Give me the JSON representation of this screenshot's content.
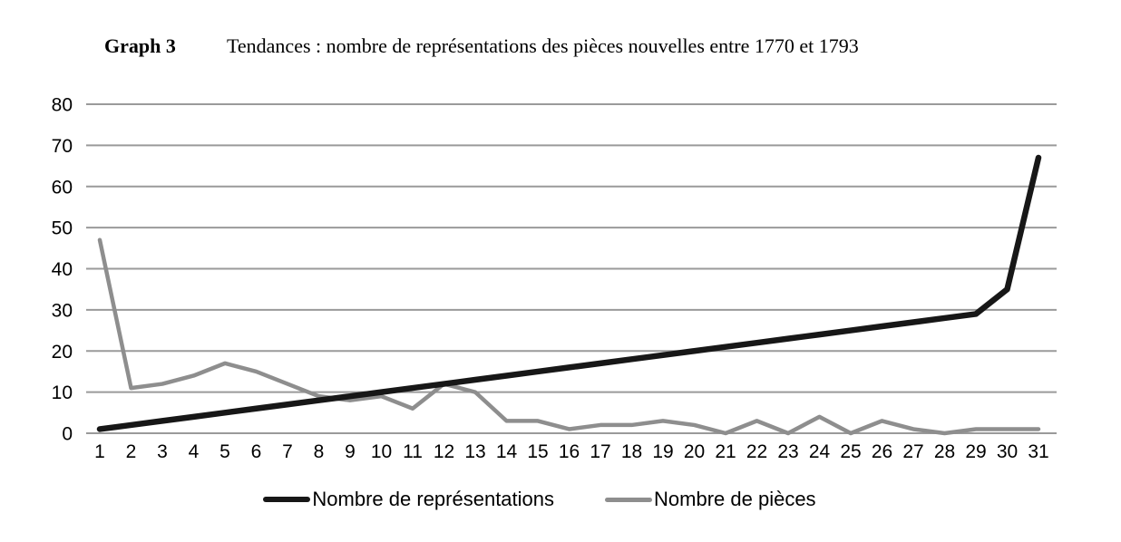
{
  "page": {
    "background": "#ffffff",
    "text_color": "#000000"
  },
  "chart_data": {
    "type": "line",
    "title_label": "Graph 3",
    "title_text": "Tendances : nombre de représentations des pièces nouvelles entre 1770 et 1793",
    "x": [
      1,
      2,
      3,
      4,
      5,
      6,
      7,
      8,
      9,
      10,
      11,
      12,
      13,
      14,
      15,
      16,
      17,
      18,
      19,
      20,
      21,
      22,
      23,
      24,
      25,
      26,
      27,
      28,
      29,
      30,
      31
    ],
    "series": [
      {
        "name": "Nombre de représentations",
        "color": "#171717",
        "values": [
          1,
          2,
          3,
          4,
          5,
          6,
          7,
          8,
          9,
          10,
          11,
          12,
          13,
          14,
          15,
          16,
          17,
          18,
          19,
          20,
          21,
          22,
          23,
          24,
          25,
          26,
          27,
          28,
          29,
          35,
          67
        ]
      },
      {
        "name": "Nombre de pièces",
        "color": "#8e8e8e",
        "values": [
          47,
          11,
          12,
          14,
          17,
          15,
          12,
          9,
          8,
          9,
          6,
          12,
          10,
          3,
          3,
          1,
          2,
          2,
          3,
          2,
          0,
          3,
          0,
          4,
          0,
          3,
          1,
          0,
          1,
          1,
          1
        ]
      }
    ],
    "ylim": [
      0,
      80
    ],
    "yticks": [
      0,
      10,
      20,
      30,
      40,
      50,
      60,
      70,
      80
    ],
    "xlabel": "",
    "ylabel": "",
    "grid": true,
    "gridline_color": "#9a9a9a",
    "axis_label_color": "#000000",
    "legend_position": "bottom"
  }
}
